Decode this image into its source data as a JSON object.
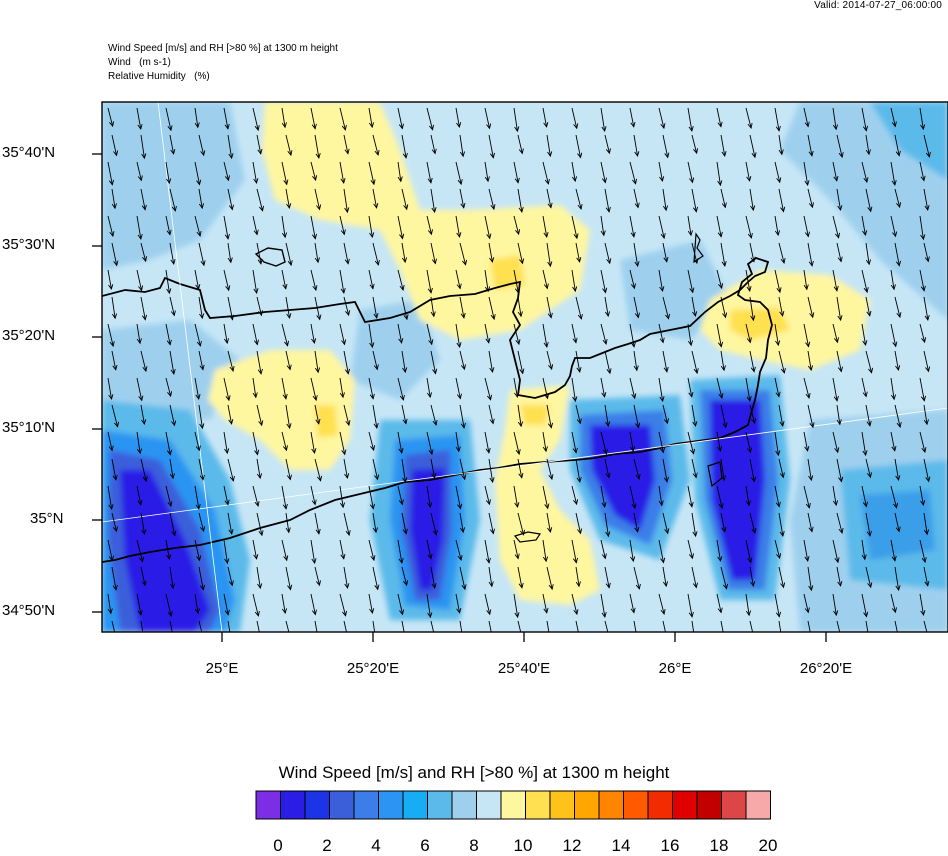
{
  "valid_text": "Valid: 2014-07-27_06:00:00",
  "header": {
    "line1": "Wind Speed [m/s] and RH [>80 %] at 1300 m height",
    "line2": "Wind   (m s-1)",
    "line3": "Relative Humidity   (%)"
  },
  "map": {
    "lat_labels": [
      "35°40'N",
      "35°30'N",
      "35°20'N",
      "35°10'N",
      "35°N",
      "34°50'N"
    ],
    "lon_labels": [
      "25°E",
      "25°20'E",
      "25°40'E",
      "26°E",
      "26°20'E"
    ]
  },
  "legend": {
    "title": "Wind Speed [m/s] and RH [>80 %] at 1300 m height",
    "tick_labels": [
      "0",
      "2",
      "4",
      "6",
      "8",
      "10",
      "12",
      "14",
      "16",
      "18",
      "20"
    ],
    "colors": [
      "#7b2ee6",
      "#2c1de6",
      "#1a34e6",
      "#3b5fdb",
      "#3b7ee8",
      "#2c94f2",
      "#16adf5",
      "#5cbaea",
      "#9ed0ee",
      "#c6e6f6",
      "#fff6a0",
      "#ffe050",
      "#ffc21a",
      "#ffa600",
      "#ff8400",
      "#ff5a00",
      "#f32b00",
      "#e00000",
      "#c20000",
      "#dc4646",
      "#f7a8a8"
    ]
  },
  "colors": {
    "frame": "#000000",
    "coast": "#000000",
    "arrow": "#000000"
  }
}
